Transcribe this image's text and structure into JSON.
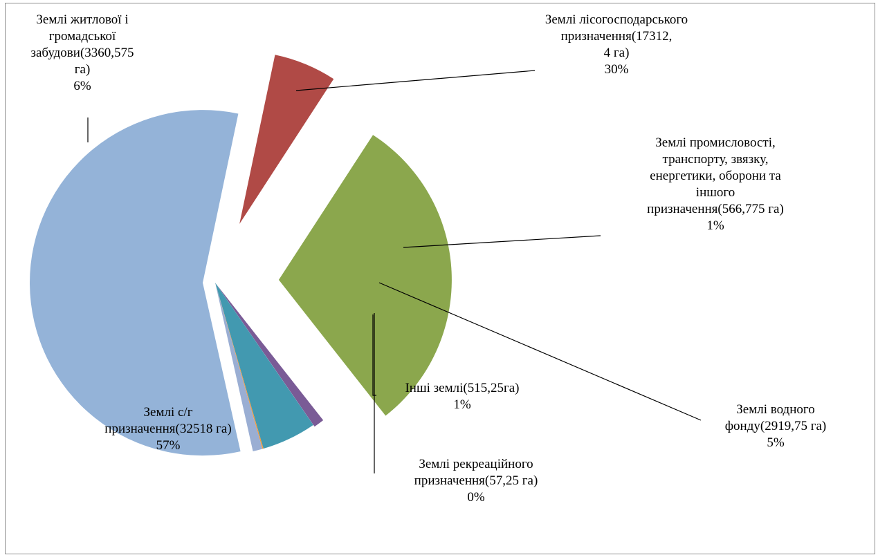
{
  "chart_data": {
    "type": "pie",
    "title": "",
    "series": [
      {
        "name": "",
        "slices": [
          {
            "label_lines": [
              "Землі лісогосподарського",
              "призначення(17312,",
              "4 га)"
            ],
            "percent_label": "30%",
            "value": 17312.4,
            "color": "#8ba74d"
          },
          {
            "label_lines": [
              "Землі промисловості,",
              "транспорту, звязку,",
              "енергетики, оборони та",
              "іншого",
              "призначення(566,775 га)"
            ],
            "percent_label": "1%",
            "value": 566.775,
            "color": "#7a5b96"
          },
          {
            "label_lines": [
              "Землі водного",
              "фонду(2919,75 га)"
            ],
            "percent_label": "5%",
            "value": 2919.75,
            "color": "#4299b0"
          },
          {
            "label_lines": [
              "Землі рекреаційного",
              "призначення(57,25 га)"
            ],
            "percent_label": "0%",
            "value": 57.25,
            "color": "#f19a3e"
          },
          {
            "label_lines": [
              "Інші землі(515,25га)"
            ],
            "percent_label": "1%",
            "value": 515.25,
            "color": "#9aaed3"
          },
          {
            "label_lines": [
              "Землі с/г",
              "призначення(32518 га)"
            ],
            "percent_label": "57%",
            "value": 32518,
            "color": "#94b3d8"
          },
          {
            "label_lines": [
              "Землі житлової і",
              "громадської",
              "забудови(3360,575",
              "га)"
            ],
            "percent_label": "6%",
            "value": 3360.575,
            "color": "#b04a46"
          }
        ]
      }
    ],
    "legend": "none",
    "labels": "outside with leader lines"
  }
}
